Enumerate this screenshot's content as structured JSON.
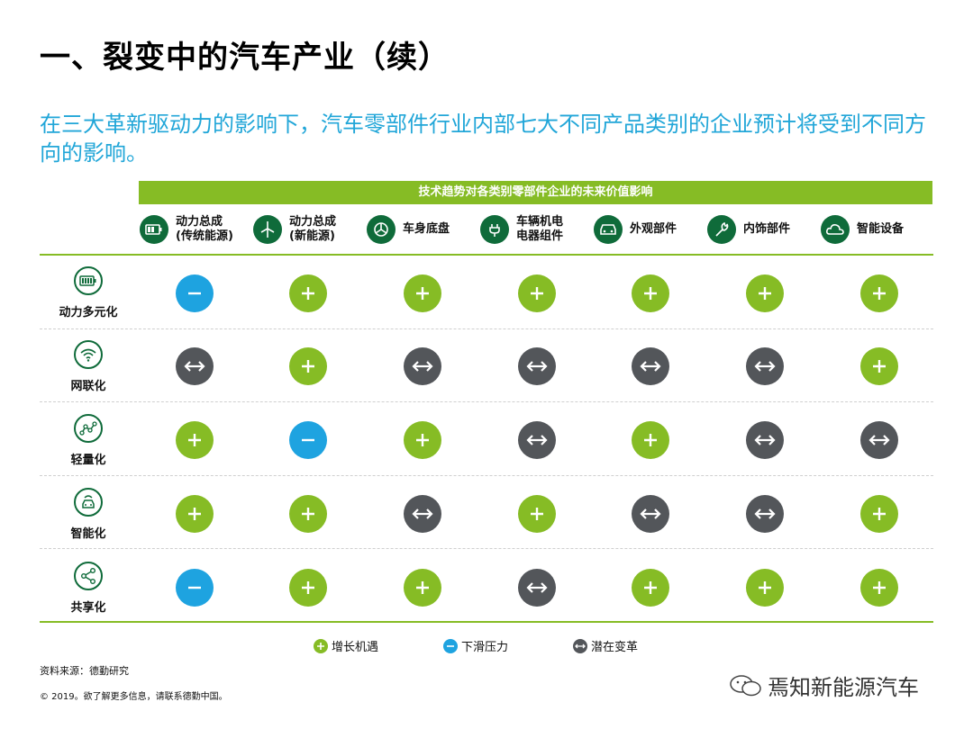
{
  "title": "一、裂变中的汽车产业（续）",
  "subtitle": "在三大革新驱动力的影响下，汽车零部件行业内部七大不同产品类别的企业预计将受到不同方向的影响。",
  "banner": "技术趋势对各类别零部件企业的未来价值影响",
  "columns": [
    {
      "line1": "动力总成",
      "line2": "(传统能源)",
      "icon": "battery-icon"
    },
    {
      "line1": "动力总成",
      "line2": "(新能源)",
      "icon": "wind-turbine-icon"
    },
    {
      "line1": "车身底盘",
      "line2": "",
      "icon": "chassis-icon"
    },
    {
      "line1": "车辆机电",
      "line2": "电器组件",
      "icon": "plug-icon"
    },
    {
      "line1": "外观部件",
      "line2": "",
      "icon": "car-front-icon"
    },
    {
      "line1": "内饰部件",
      "line2": "",
      "icon": "wrench-icon"
    },
    {
      "line1": "智能设备",
      "line2": "",
      "icon": "cloud-icon"
    }
  ],
  "rows": [
    {
      "label": "动力多元化",
      "icon": "battery-level-icon",
      "values": [
        "minus",
        "plus",
        "plus",
        "plus",
        "plus",
        "plus",
        "plus"
      ]
    },
    {
      "label": "网联化",
      "icon": "wifi-icon",
      "values": [
        "shift",
        "plus",
        "shift",
        "shift",
        "shift",
        "shift",
        "plus"
      ]
    },
    {
      "label": "轻量化",
      "icon": "trend-line-icon",
      "values": [
        "plus",
        "minus",
        "plus",
        "shift",
        "plus",
        "shift",
        "shift"
      ]
    },
    {
      "label": "智能化",
      "icon": "smart-car-icon",
      "values": [
        "plus",
        "plus",
        "shift",
        "plus",
        "shift",
        "shift",
        "plus"
      ]
    },
    {
      "label": "共享化",
      "icon": "share-icon",
      "values": [
        "minus",
        "plus",
        "plus",
        "shift",
        "plus",
        "plus",
        "plus"
      ]
    }
  ],
  "legend": {
    "plus": "增长机遇",
    "minus": "下滑压力",
    "shift": "潜在变革"
  },
  "source": "资料来源：德勤研究",
  "copyright": "© 2019。欲了解更多信息，请联系德勤中国。",
  "watermark": "焉知新能源汽车",
  "colors": {
    "green": "#86bc25",
    "blue": "#1ea3e0",
    "gray": "#53565a",
    "dark_green": "#0f6b3a",
    "teal": "#21a6d8"
  }
}
